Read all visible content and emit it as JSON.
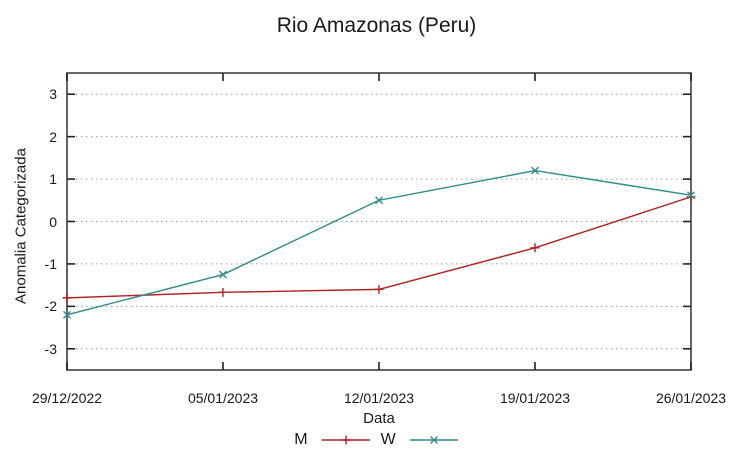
{
  "title": "Rio Amazonas (Peru)",
  "chart_data": {
    "type": "line",
    "title": "Rio Amazonas (Peru)",
    "xlabel": "Data",
    "ylabel": "Anomalia Categorizada",
    "x": [
      "29/12/2022",
      "05/01/2023",
      "12/01/2023",
      "19/01/2023",
      "26/01/2023"
    ],
    "y_ticks": [
      3,
      2,
      1,
      0,
      -1,
      -2,
      -3
    ],
    "ylim": [
      -3.5,
      3.5
    ],
    "grid": "horizontal-dotted",
    "legend_position": "bottom-center",
    "series": [
      {
        "name": "M",
        "marker": "plus",
        "color": "#b22222",
        "values": [
          -1.8,
          -1.67,
          -1.6,
          -0.62,
          0.58
        ]
      },
      {
        "name": "W",
        "marker": "cross",
        "color": "#2e8b8b",
        "values": [
          -2.2,
          -1.25,
          0.5,
          1.2,
          0.62
        ]
      }
    ]
  },
  "colors": {
    "background": "#ffffff",
    "border": "#565656",
    "tick": "#222222",
    "grid": "#9a9a9a",
    "text": "#1a1a1a",
    "series_m": "#b22222",
    "series_w": "#2e8b8b"
  }
}
